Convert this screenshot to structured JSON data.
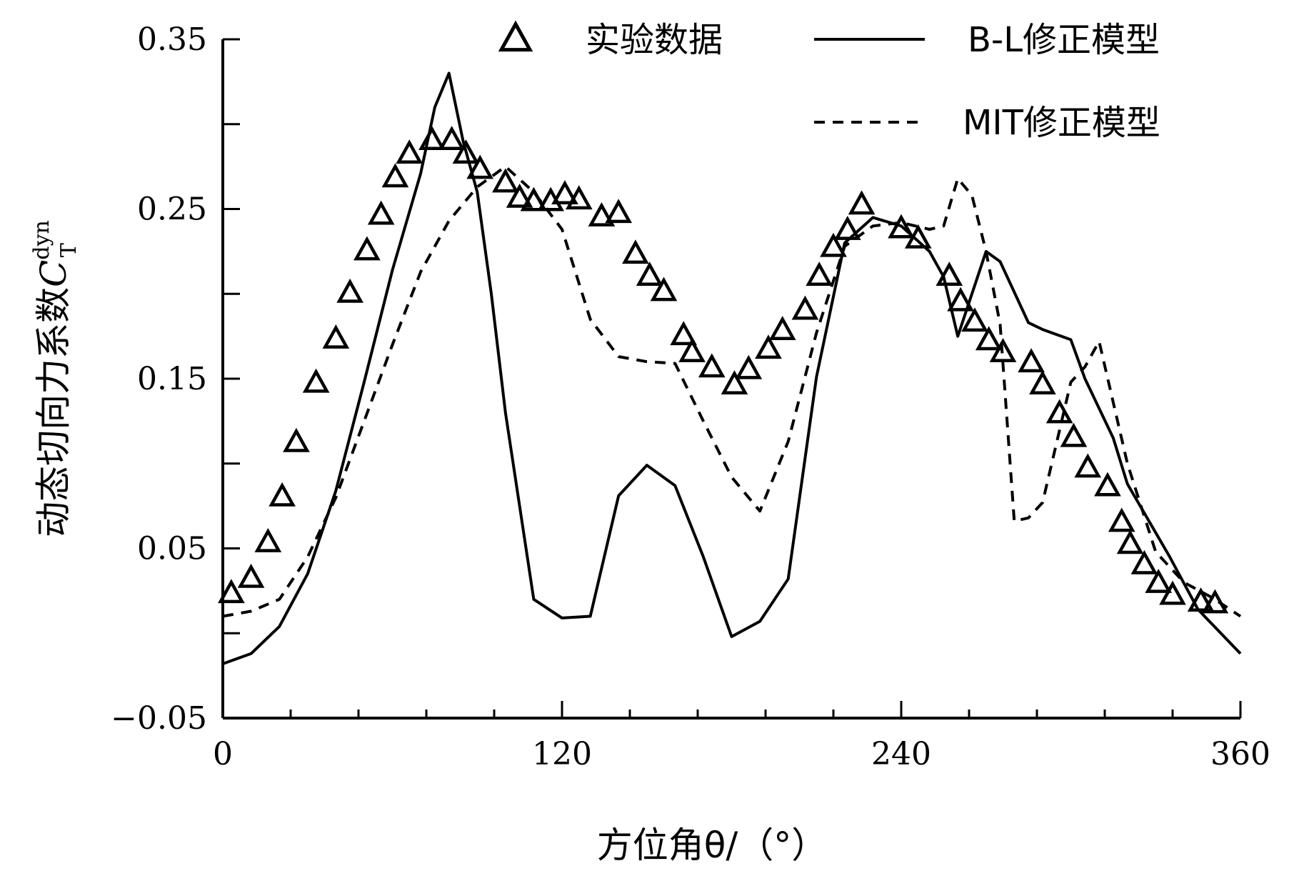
{
  "chart_data": {
    "type": "line",
    "xlabel": "方位角θ/（°）",
    "ylabel": "动态切向力系数",
    "ylabel_symbol": "C",
    "ylabel_sup": "dyn",
    "ylabel_sub": "T",
    "xlim": [
      0,
      360
    ],
    "ylim": [
      -0.05,
      0.35
    ],
    "x_ticks": [
      0,
      120,
      240,
      360
    ],
    "x_tick_labels": [
      "0",
      "120",
      "240",
      "360"
    ],
    "y_ticks": [
      -0.05,
      0.05,
      0.15,
      0.25,
      0.35
    ],
    "y_tick_labels": [
      "−0.05",
      "0.05",
      "0.15",
      "0.25",
      "0.35"
    ],
    "legend_position": "top-right",
    "series": [
      {
        "name": "实验数据",
        "style": "triangle-markers",
        "x": [
          3,
          10,
          16,
          21,
          26,
          33,
          40,
          45,
          51,
          56,
          61,
          66,
          74,
          81,
          86,
          91,
          100,
          105,
          110,
          116,
          121,
          126,
          134,
          140,
          146,
          151,
          156,
          163,
          166,
          173,
          181,
          186,
          193,
          198,
          206,
          211,
          216,
          221,
          226,
          240,
          246,
          257,
          261,
          266,
          271,
          276,
          286,
          290,
          296,
          301,
          306,
          313,
          318,
          321,
          326,
          331,
          336,
          346,
          351
        ],
        "y": [
          0.023,
          0.032,
          0.053,
          0.08,
          0.112,
          0.147,
          0.173,
          0.2,
          0.225,
          0.246,
          0.268,
          0.282,
          0.29,
          0.29,
          0.282,
          0.273,
          0.265,
          0.256,
          0.254,
          0.254,
          0.258,
          0.255,
          0.245,
          0.247,
          0.223,
          0.21,
          0.201,
          0.175,
          0.165,
          0.156,
          0.146,
          0.155,
          0.167,
          0.178,
          0.19,
          0.21,
          0.227,
          0.237,
          0.252,
          0.238,
          0.232,
          0.21,
          0.195,
          0.183,
          0.172,
          0.165,
          0.159,
          0.146,
          0.129,
          0.115,
          0.097,
          0.086,
          0.065,
          0.052,
          0.04,
          0.029,
          0.022,
          0.018,
          0.017
        ]
      },
      {
        "name": "B-L修正模型",
        "style": "solid-line",
        "x": [
          0,
          10,
          20,
          30,
          40,
          50,
          60,
          70,
          75,
          80,
          85,
          90,
          95,
          100,
          110,
          120,
          130,
          140,
          150,
          160,
          170,
          180,
          190,
          200,
          210,
          220,
          230,
          240,
          250,
          255,
          260,
          270,
          275,
          285,
          290,
          300,
          305,
          315,
          320,
          335,
          345,
          360
        ],
        "y": [
          -0.018,
          -0.012,
          0.004,
          0.035,
          0.084,
          0.148,
          0.214,
          0.271,
          0.31,
          0.33,
          0.29,
          0.26,
          0.2,
          0.13,
          0.02,
          0.009,
          0.01,
          0.081,
          0.099,
          0.087,
          0.045,
          -0.002,
          0.007,
          0.032,
          0.151,
          0.23,
          0.245,
          0.24,
          0.225,
          0.21,
          0.175,
          0.225,
          0.219,
          0.183,
          0.179,
          0.173,
          0.15,
          0.115,
          0.088,
          0.045,
          0.014,
          -0.012
        ]
      },
      {
        "name": "MIT修正模型",
        "style": "dashed-line",
        "x": [
          0,
          10,
          20,
          30,
          40,
          50,
          60,
          70,
          80,
          90,
          100,
          110,
          120,
          130,
          140,
          150,
          160,
          170,
          180,
          190,
          200,
          210,
          220,
          230,
          240,
          250,
          255,
          260,
          265,
          270,
          275,
          280,
          285,
          290,
          300,
          305,
          310,
          315,
          320,
          330,
          340,
          350,
          360
        ],
        "y": [
          0.01,
          0.013,
          0.02,
          0.045,
          0.08,
          0.125,
          0.17,
          0.213,
          0.243,
          0.263,
          0.275,
          0.26,
          0.238,
          0.185,
          0.163,
          0.16,
          0.159,
          0.125,
          0.092,
          0.072,
          0.113,
          0.177,
          0.228,
          0.24,
          0.242,
          0.238,
          0.24,
          0.268,
          0.258,
          0.225,
          0.182,
          0.066,
          0.068,
          0.077,
          0.148,
          0.157,
          0.172,
          0.136,
          0.1,
          0.048,
          0.03,
          0.021,
          0.01
        ]
      }
    ]
  }
}
